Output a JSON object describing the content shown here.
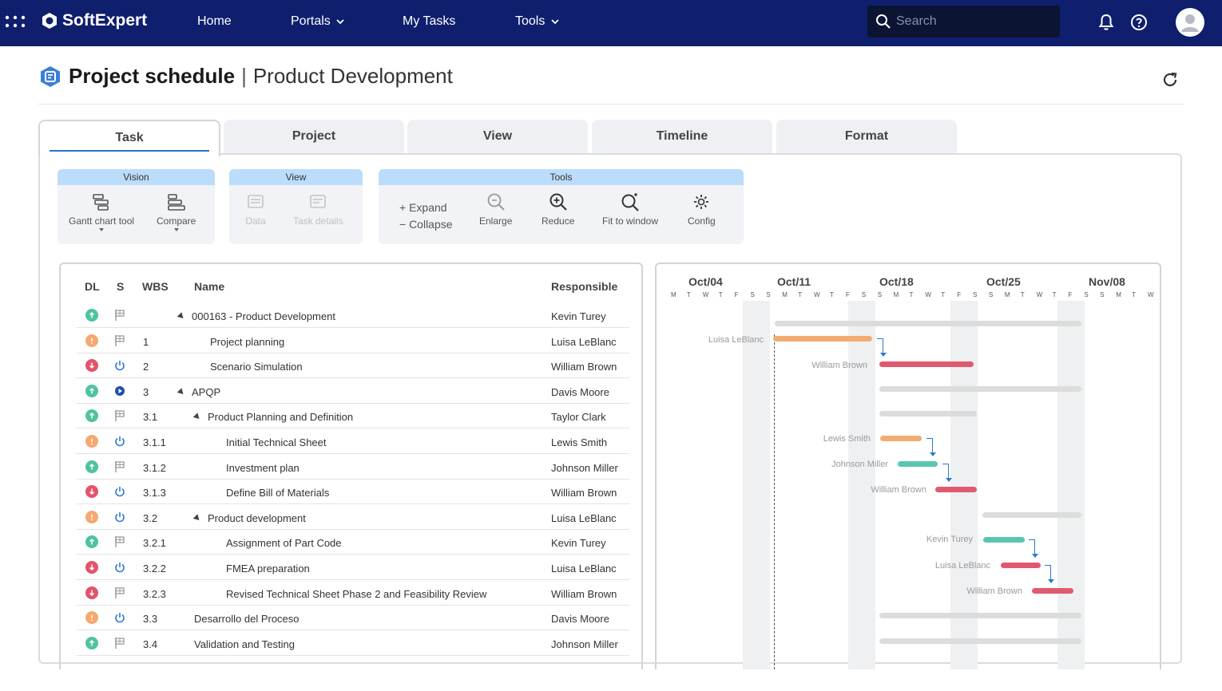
{
  "topbar": {
    "brand": "SoftExpert",
    "nav": [
      "Home",
      "Portals",
      "My Tasks",
      "Tools"
    ],
    "search_placeholder": "Search"
  },
  "header": {
    "title": "Project schedule",
    "separator": "|",
    "subtitle": "Product Development"
  },
  "tabs": [
    "Task",
    "Project",
    "View",
    "Timeline",
    "Format"
  ],
  "ribbon": {
    "vision": {
      "title": "Vision",
      "gantt": "Gantt chart tool",
      "compare": "Compare"
    },
    "view": {
      "title": "View",
      "data": "Data",
      "task_details": "Task details"
    },
    "tools": {
      "title": "Tools",
      "expand": "+ Expand",
      "collapse": "− Collapse",
      "enlarge": "Enlarge",
      "reduce": "Reduce",
      "fit": "Fit to window",
      "config": "Config"
    }
  },
  "grid": {
    "columns": {
      "dl": "DL",
      "s": "S",
      "wbs": "WBS",
      "name": "Name",
      "responsible": "Responsible"
    },
    "rows": [
      {
        "dl": "green",
        "s": "flag",
        "wbs": "",
        "name": "000163 - Product Development",
        "responsible": "Kevin Turey",
        "indent": 0,
        "expand": true
      },
      {
        "dl": "orange",
        "s": "flag",
        "wbs": "1",
        "name": "Project planning",
        "responsible": "Luisa LeBlanc",
        "indent": 1,
        "expand": false
      },
      {
        "dl": "red",
        "s": "power",
        "wbs": "2",
        "name": "Scenario Simulation",
        "responsible": "William Brown",
        "indent": 1,
        "expand": false
      },
      {
        "dl": "green",
        "s": "play",
        "wbs": "3",
        "name": "APQP",
        "responsible": "Davis Moore",
        "indent": 0,
        "expand": true
      },
      {
        "dl": "green",
        "s": "flag",
        "wbs": "3.1",
        "name": "Product Planning and Definition",
        "responsible": "Taylor Clark",
        "indent": 1,
        "expand": true
      },
      {
        "dl": "orange",
        "s": "power",
        "wbs": "3.1.1",
        "name": "Initial Technical Sheet",
        "responsible": "Lewis Smith",
        "indent": 2,
        "expand": false
      },
      {
        "dl": "green",
        "s": "flag",
        "wbs": "3.1.2",
        "name": "Investment plan",
        "responsible": "Johnson Miller",
        "indent": 2,
        "expand": false
      },
      {
        "dl": "red",
        "s": "power",
        "wbs": "3.1.3",
        "name": "Define Bill of Materials",
        "responsible": "William Brown",
        "indent": 2,
        "expand": false
      },
      {
        "dl": "orange",
        "s": "power",
        "wbs": "3.2",
        "name": "Product development",
        "responsible": "Luisa LeBlanc",
        "indent": 1,
        "expand": true
      },
      {
        "dl": "green",
        "s": "flag",
        "wbs": "3.2.1",
        "name": "Assignment of Part Code",
        "responsible": "Kevin Turey",
        "indent": 2,
        "expand": false
      },
      {
        "dl": "red",
        "s": "power",
        "wbs": "3.2.2",
        "name": "FMEA preparation",
        "responsible": "Luisa LeBlanc",
        "indent": 2,
        "expand": false
      },
      {
        "dl": "red",
        "s": "flag",
        "wbs": "3.2.3",
        "name": "Revised Technical Sheet Phase 2 and Feasibility Review",
        "responsible": "William Brown",
        "indent": 2,
        "expand": false
      },
      {
        "dl": "orange",
        "s": "power",
        "wbs": "3.3",
        "name": "Desarrollo del Proceso",
        "responsible": "Davis Moore",
        "indent": 0,
        "expand": false
      },
      {
        "dl": "green",
        "s": "flag",
        "wbs": "3.4",
        "name": "Validation and Testing",
        "responsible": "Johnson Miller",
        "indent": 0,
        "expand": false
      }
    ]
  },
  "gantt": {
    "weeks": [
      "Oct/04",
      "Oct/11",
      "Oct/18",
      "Oct/25",
      "Nov/08"
    ],
    "day_letters": [
      "M",
      "T",
      "W",
      "T",
      "F",
      "S",
      "S"
    ],
    "labels": {
      "r1": "Luisa LeBlanc",
      "r2": "William Brown",
      "r5": "Lewis Smith",
      "r6": "Johnson Miller",
      "r7": "William Brown",
      "r9": "Kevin Turey",
      "r10": "Luisa LeBlanc",
      "r11": "William Brown"
    }
  },
  "colors": {
    "navy": "#0f1f6e",
    "green": "#4fc3a1",
    "orange": "#f5a870",
    "red": "#e3536a",
    "bar_orange": "#f2ac72",
    "bar_red": "#e05a6f",
    "bar_teal": "#5bc6b0",
    "bar_gray": "#dcdcdc"
  }
}
